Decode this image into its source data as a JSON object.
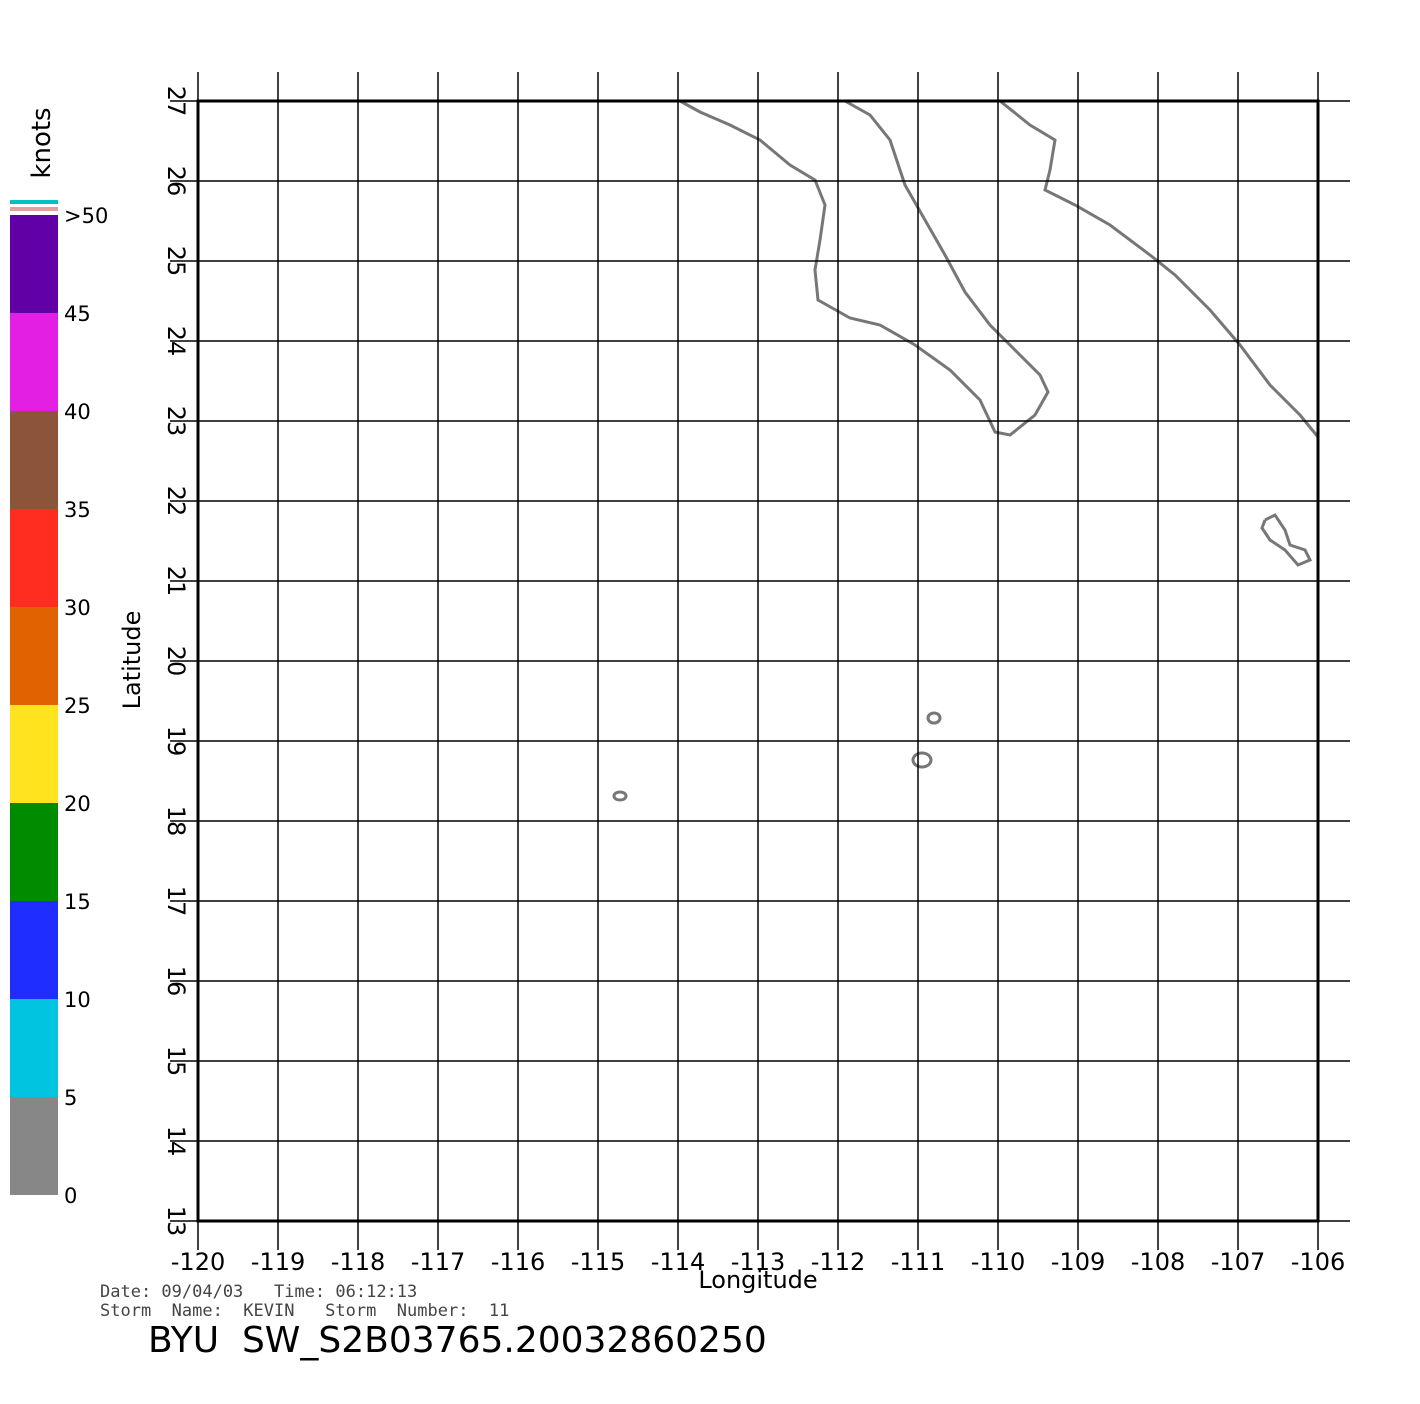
{
  "chart_data": {
    "type": "wind-map",
    "xlabel": "Longitude",
    "ylabel": "Latitude",
    "xlim": [
      -120,
      -106
    ],
    "xticks": [
      -120,
      -119,
      -118,
      -117,
      -116,
      -115,
      -114,
      -113,
      -112,
      -111,
      -110,
      -109,
      -108,
      -107,
      -106
    ],
    "ylim": [
      13,
      27
    ],
    "yticks": [
      13,
      14,
      15,
      16,
      17,
      18,
      19,
      20,
      21,
      22,
      23,
      24,
      25,
      26,
      27
    ],
    "grid": true,
    "colorbar": {
      "label": "knots",
      "lim": [
        0,
        50
      ],
      "ticks": [
        0,
        5,
        10,
        15,
        20,
        25,
        30,
        35,
        40,
        45,
        {
          "value": 50,
          "label": ">50"
        }
      ],
      "colors": [
        "#777777",
        "#00e0ff",
        "#0010ff",
        "#00a000",
        "#ffe000",
        "#ff7000",
        "#ff1000",
        "#a06040",
        "#e000e0",
        "#7000c0"
      ]
    },
    "date_line": "Date: 09/04/03   Time: 06:12:13",
    "storm_line": "Storm  Name:  KEVIN   Storm  Number:  11",
    "file_name": "BYU  SW_S2B03765.20032860250"
  }
}
